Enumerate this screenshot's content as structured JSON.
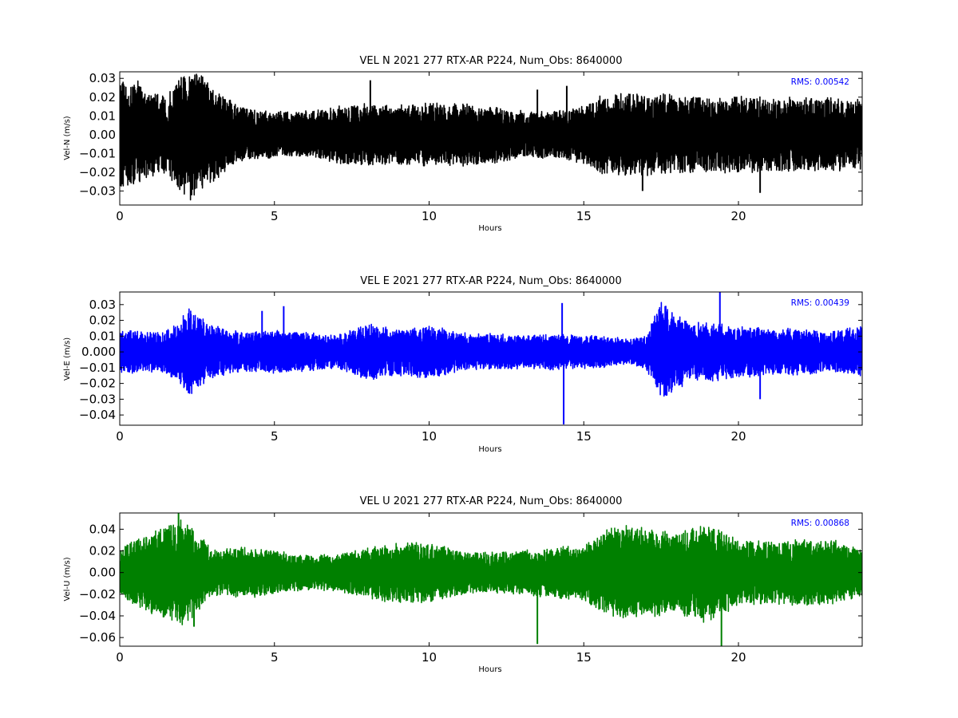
{
  "chart_data": [
    {
      "type": "line",
      "title": "VEL N 2021 277 RTX-AR  P224, Num_Obs: 8640000",
      "xlabel": "Hours",
      "ylabel": "Vel-N (m/s)",
      "xlim": [
        0,
        24
      ],
      "ylim": [
        -0.0375,
        0.0335
      ],
      "xticks": [
        0,
        5,
        10,
        15,
        20
      ],
      "yticks": [
        -0.03,
        -0.02,
        -0.01,
        0.0,
        0.01,
        0.02,
        0.03
      ],
      "ytick_labels": [
        "−0.03",
        "−0.02",
        "−0.01",
        "0.00",
        "0.01",
        "0.02",
        "0.03"
      ],
      "rms_label": "RMS:  0.00542",
      "grid": false,
      "series": [
        {
          "color": "#000000",
          "n_obs": 8640000,
          "envelope": {
            "hours": [
              0,
              0.5,
              1,
              1.5,
              2,
              2.3,
              2.6,
              3,
              3.5,
              4,
              5,
              6,
              7,
              8,
              9,
              10,
              11,
              12,
              13,
              14,
              14.5,
              15,
              15.5,
              16,
              17,
              18,
              19,
              20,
              21,
              22,
              23,
              24
            ],
            "amplitude": [
              0.026,
              0.028,
              0.022,
              0.02,
              0.03,
              0.034,
              0.032,
              0.026,
              0.018,
              0.014,
              0.012,
              0.012,
              0.015,
              0.016,
              0.015,
              0.016,
              0.016,
              0.015,
              0.012,
              0.012,
              0.013,
              0.015,
              0.02,
              0.021,
              0.021,
              0.02,
              0.019,
              0.02,
              0.019,
              0.019,
              0.019,
              0.018
            ]
          },
          "spikes": [
            {
              "hour": 8.1,
              "value": 0.029
            },
            {
              "hour": 13.5,
              "value": 0.024
            },
            {
              "hour": 14.45,
              "value": 0.026
            },
            {
              "hour": 20.7,
              "value": -0.031
            },
            {
              "hour": 16.9,
              "value": -0.03
            }
          ]
        }
      ]
    },
    {
      "type": "line",
      "title": "VEL E 2021 277 RTX-AR  P224, Num_Obs: 8640000",
      "xlabel": "Hours",
      "ylabel": "Vel-E (m/s)",
      "xlim": [
        0,
        24
      ],
      "ylim": [
        -0.0465,
        0.038
      ],
      "xticks": [
        0,
        5,
        10,
        15,
        20
      ],
      "yticks": [
        -0.04,
        -0.03,
        -0.02,
        -0.01,
        0.0,
        0.01,
        0.02,
        0.03
      ],
      "ytick_labels": [
        "−0.04",
        "−0.03",
        "−0.02",
        "−0.01",
        "0.000",
        "0.01",
        "0.02",
        "0.03"
      ],
      "rms_label": "RMS:  0.00439",
      "grid": false,
      "series": [
        {
          "color": "#0000ff",
          "n_obs": 8640000,
          "envelope": {
            "hours": [
              0,
              0.5,
              1,
              1.5,
              2,
              2.2,
              2.5,
              3,
              4,
              5,
              6,
              7,
              7.5,
              8,
              9,
              10,
              11,
              12,
              13,
              14,
              15,
              16,
              16.5,
              17,
              17.3,
              17.5,
              18,
              18.5,
              19,
              20,
              21,
              22,
              23,
              24
            ],
            "amplitude": [
              0.014,
              0.013,
              0.012,
              0.013,
              0.02,
              0.028,
              0.022,
              0.016,
              0.012,
              0.013,
              0.012,
              0.01,
              0.014,
              0.017,
              0.014,
              0.016,
              0.012,
              0.011,
              0.01,
              0.011,
              0.01,
              0.009,
              0.008,
              0.01,
              0.022,
              0.03,
              0.022,
              0.018,
              0.018,
              0.016,
              0.014,
              0.014,
              0.012,
              0.016
            ]
          },
          "spikes": [
            {
              "hour": 14.3,
              "value": 0.031
            },
            {
              "hour": 14.35,
              "value": -0.046
            },
            {
              "hour": 19.4,
              "value": 0.038
            },
            {
              "hour": 20.7,
              "value": -0.03
            },
            {
              "hour": 5.3,
              "value": 0.029
            },
            {
              "hour": 4.6,
              "value": 0.026
            }
          ]
        }
      ]
    },
    {
      "type": "line",
      "title": "VEL U 2021 277 RTX-AR  P224, Num_Obs: 8640000",
      "xlabel": "Hours",
      "ylabel": "Vel-U (m/s)",
      "xlim": [
        0,
        24
      ],
      "ylim": [
        -0.068,
        0.055
      ],
      "xticks": [
        0,
        5,
        10,
        15,
        20
      ],
      "yticks": [
        -0.06,
        -0.04,
        -0.02,
        0.0,
        0.02,
        0.04
      ],
      "ytick_labels": [
        "−0.06",
        "−0.04",
        "−0.02",
        "0.00",
        "0.02",
        "0.04"
      ],
      "rms_label": "RMS:  0.00868",
      "grid": false,
      "series": [
        {
          "color": "#008000",
          "n_obs": 8640000,
          "envelope": {
            "hours": [
              0,
              0.5,
              1,
              1.5,
              2,
              2.3,
              2.7,
              3,
              4,
              5,
              6,
              7,
              8,
              9,
              10,
              11,
              12,
              13,
              14,
              15,
              15.5,
              16,
              17,
              18,
              18.5,
              19,
              19.5,
              20,
              21,
              22,
              23,
              24
            ],
            "amplitude": [
              0.02,
              0.03,
              0.035,
              0.042,
              0.048,
              0.045,
              0.03,
              0.02,
              0.022,
              0.02,
              0.015,
              0.016,
              0.022,
              0.028,
              0.026,
              0.02,
              0.018,
              0.02,
              0.022,
              0.024,
              0.036,
              0.042,
              0.04,
              0.036,
              0.042,
              0.044,
              0.036,
              0.03,
              0.028,
              0.03,
              0.03,
              0.02
            ]
          },
          "spikes": [
            {
              "hour": 13.5,
              "value": -0.066
            },
            {
              "hour": 19.45,
              "value": -0.068
            },
            {
              "hour": 1.9,
              "value": 0.055
            },
            {
              "hour": 2.4,
              "value": -0.05
            }
          ]
        }
      ]
    }
  ]
}
